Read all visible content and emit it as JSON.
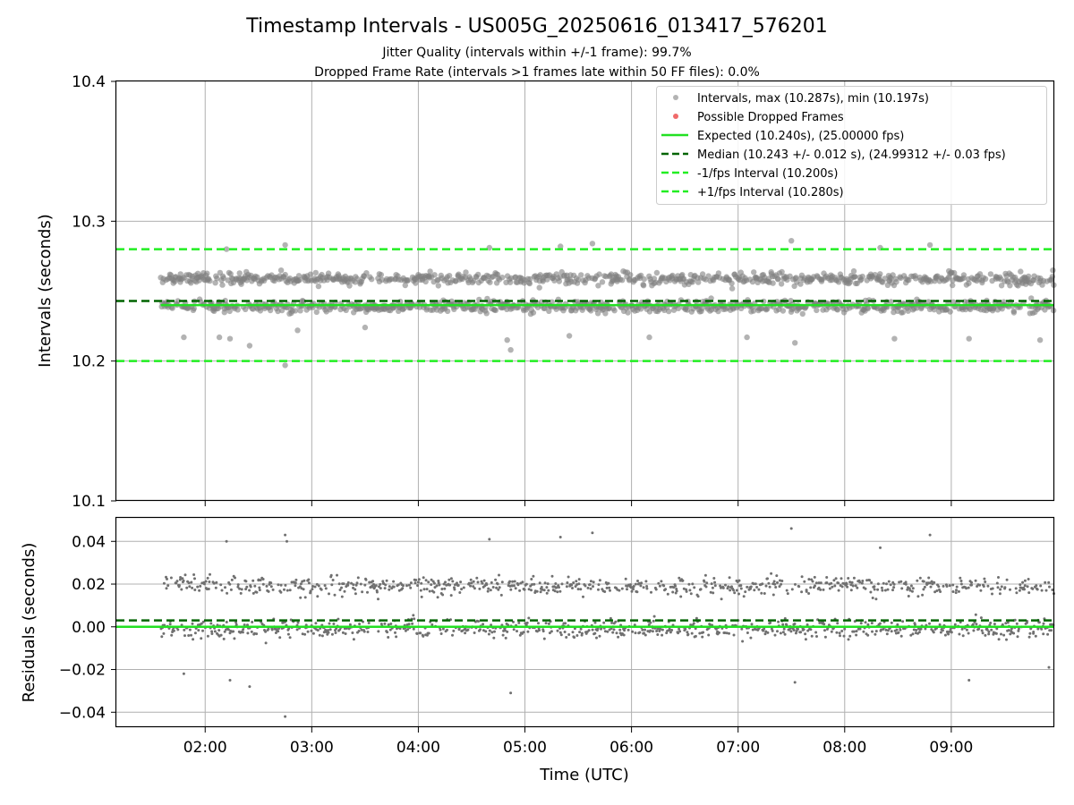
{
  "figure": {
    "title": "Timestamp Intervals - US005G_20250616_013417_576201",
    "subtitle_1": "Jitter Quality (intervals within +/-1 frame): 99.7%",
    "subtitle_2": "Dropped Frame Rate (intervals >1 frames late within 50 FF files): 0.0%"
  },
  "chart_data": [
    {
      "type": "scatter",
      "ylabel": "Intervals (seconds)",
      "xlabel": "",
      "ylim": [
        10.1,
        10.4
      ],
      "xlim": [
        "01:10",
        "09:58"
      ],
      "x_ticks": [
        "02:00",
        "03:00",
        "04:00",
        "05:00",
        "06:00",
        "07:00",
        "08:00",
        "09:00"
      ],
      "y_ticks": [
        "10.1",
        "10.2",
        "10.3",
        "10.4"
      ],
      "grid": true,
      "legend_position": "top-right",
      "series": [
        {
          "name": "Intervals, max (10.287s), min (10.197s)",
          "kind": "scatter",
          "color": "#808080",
          "time_range": [
            "01:35",
            "09:58"
          ],
          "upper_band_center": 10.259,
          "lower_band_center": 10.239,
          "max": 10.287,
          "min": 10.197,
          "outliers": [
            {
              "x": "01:48",
              "y": 10.217
            },
            {
              "x": "02:08",
              "y": 10.217
            },
            {
              "x": "02:12",
              "y": 10.28
            },
            {
              "x": "02:14",
              "y": 10.216
            },
            {
              "x": "02:25",
              "y": 10.211
            },
            {
              "x": "02:45",
              "y": 10.283
            },
            {
              "x": "02:45",
              "y": 10.197
            },
            {
              "x": "02:52",
              "y": 10.222
            },
            {
              "x": "03:30",
              "y": 10.224
            },
            {
              "x": "04:40",
              "y": 10.281
            },
            {
              "x": "04:50",
              "y": 10.215
            },
            {
              "x": "04:52",
              "y": 10.208
            },
            {
              "x": "05:20",
              "y": 10.282
            },
            {
              "x": "05:25",
              "y": 10.218
            },
            {
              "x": "05:38",
              "y": 10.284
            },
            {
              "x": "06:10",
              "y": 10.217
            },
            {
              "x": "07:05",
              "y": 10.217
            },
            {
              "x": "07:30",
              "y": 10.286
            },
            {
              "x": "07:32",
              "y": 10.213
            },
            {
              "x": "08:20",
              "y": 10.281
            },
            {
              "x": "08:28",
              "y": 10.216
            },
            {
              "x": "08:48",
              "y": 10.283
            },
            {
              "x": "09:10",
              "y": 10.216
            },
            {
              "x": "09:50",
              "y": 10.215
            }
          ]
        },
        {
          "name": "Possible Dropped Frames",
          "kind": "scatter",
          "color": "#f06a6a",
          "points": []
        },
        {
          "name": "Expected (10.240s), (25.00000 fps)",
          "kind": "hline",
          "style": "solid",
          "color": "#22e022",
          "y": 10.24,
          "x_start": "01:35"
        },
        {
          "name": "Median (10.243 +/- 0.012 s), (24.99312 +/- 0.03 fps)",
          "kind": "hline",
          "style": "dashed",
          "color": "#006400",
          "y": 10.243
        },
        {
          "name": "-1/fps Interval (10.200s)",
          "kind": "hline",
          "style": "dashed",
          "color": "#22ee22",
          "y": 10.2
        },
        {
          "name": "+1/fps Interval (10.280s)",
          "kind": "hline",
          "style": "dashed",
          "color": "#22ee22",
          "y": 10.28
        }
      ]
    },
    {
      "type": "scatter",
      "ylabel": "Residuals (seconds)",
      "xlabel": "Time (UTC)",
      "ylim": [
        -0.047,
        0.051
      ],
      "xlim": [
        "01:10",
        "09:58"
      ],
      "x_ticks": [
        "02:00",
        "03:00",
        "04:00",
        "05:00",
        "06:00",
        "07:00",
        "08:00",
        "09:00"
      ],
      "y_ticks": [
        "0.04",
        "0.02",
        "0.00",
        "−0.02",
        "−0.04"
      ],
      "grid": true,
      "series": [
        {
          "name": "Residuals",
          "kind": "scatter",
          "color": "#707070",
          "time_range": [
            "01:35",
            "09:58"
          ],
          "upper_band_center": 0.019,
          "lower_band_center": -0.001,
          "outliers": [
            {
              "x": "01:48",
              "y": -0.022
            },
            {
              "x": "02:12",
              "y": 0.04
            },
            {
              "x": "02:14",
              "y": -0.025
            },
            {
              "x": "02:25",
              "y": -0.028
            },
            {
              "x": "02:45",
              "y": 0.043
            },
            {
              "x": "02:45",
              "y": -0.042
            },
            {
              "x": "02:46",
              "y": 0.04
            },
            {
              "x": "04:40",
              "y": 0.041
            },
            {
              "x": "04:52",
              "y": -0.031
            },
            {
              "x": "05:20",
              "y": 0.042
            },
            {
              "x": "05:38",
              "y": 0.044
            },
            {
              "x": "07:30",
              "y": 0.046
            },
            {
              "x": "07:32",
              "y": -0.026
            },
            {
              "x": "08:20",
              "y": 0.037
            },
            {
              "x": "08:48",
              "y": 0.043
            },
            {
              "x": "09:10",
              "y": -0.025
            },
            {
              "x": "09:55",
              "y": -0.019
            }
          ]
        },
        {
          "name": "Expected",
          "kind": "hline",
          "style": "solid",
          "color": "#22e022",
          "y": 0.0
        },
        {
          "name": "Median",
          "kind": "hline",
          "style": "dashed",
          "color": "#006400",
          "y": 0.003
        }
      ]
    }
  ]
}
